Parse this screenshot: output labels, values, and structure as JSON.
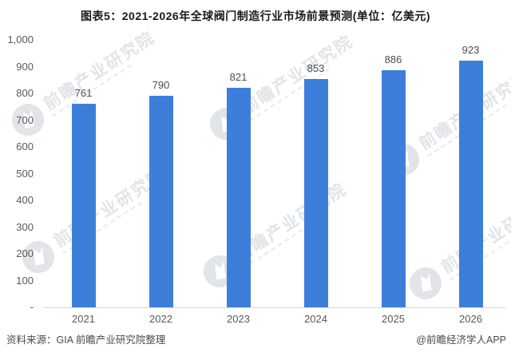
{
  "title": "图表5：2021-2026年全球阀门制造行业市场前景预测(单位：亿美元)",
  "chart_data": {
    "type": "bar",
    "title": "图表5：2021-2026年全球阀门制造行业市场前景预测(单位：亿美元)",
    "unit": "亿美元",
    "categories": [
      "2021",
      "2022",
      "2023",
      "2024",
      "2025",
      "2026"
    ],
    "values": [
      761,
      790,
      821,
      853,
      886,
      923
    ],
    "xlabel": "",
    "ylabel": "",
    "ylim": [
      0,
      1000
    ],
    "ytick_step": 100,
    "ytick_labels": [
      "-",
      "100",
      "200",
      "300",
      "400",
      "500",
      "600",
      "700",
      "800",
      "900",
      "1,000"
    ],
    "grid": false,
    "legend_position": "none",
    "bar_color": "#3D7EDB",
    "value_labels_shown": true
  },
  "footer": {
    "source": "资料来源：GIA 前瞻产业研究院整理",
    "credit": "@前瞻经济学人APP"
  },
  "watermark": {
    "text": "前瞻产业研究院"
  },
  "colors": {
    "bar": "#3D7EDB",
    "axis_line": "#d9d9d9",
    "tick_text": "#595959",
    "value_text": "#4d4d4d",
    "title_text": "#1a1a1a",
    "watermark": "#c9ced6"
  }
}
